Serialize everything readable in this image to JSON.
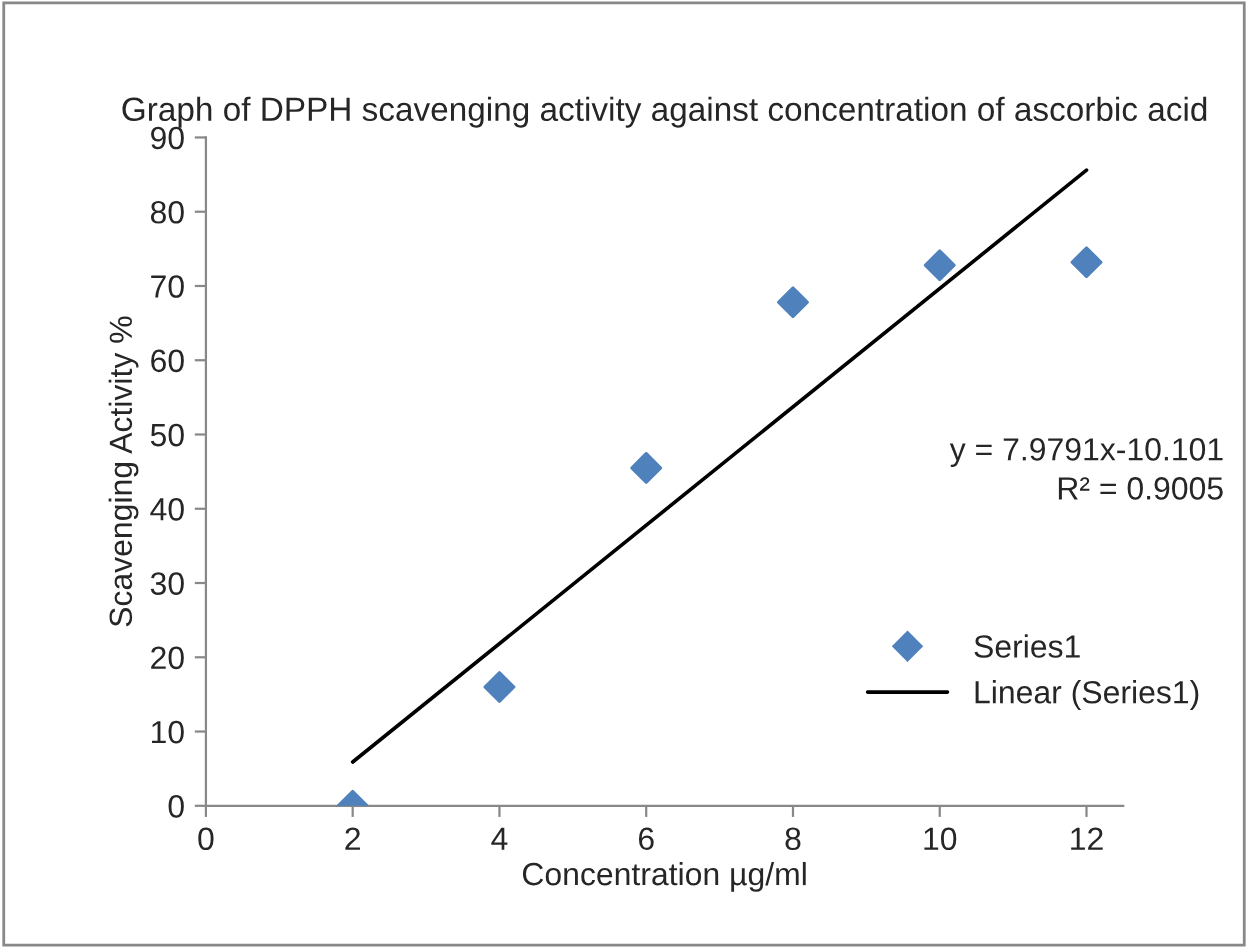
{
  "chart_data": {
    "type": "scatter",
    "title": "Graph of DPPH scavenging activity against concentration of ascorbic acid",
    "xlabel": "Concentration µg/ml",
    "ylabel": "Scavenging Activity %",
    "x": [
      2,
      4,
      6,
      8,
      10,
      12
    ],
    "series": [
      {
        "name": "Series1",
        "color": "#4f81bd",
        "values": [
          0,
          16,
          45.5,
          67.8,
          72.8,
          73.2
        ],
        "marker": "diamond"
      },
      {
        "name": "Linear (Series1)",
        "type": "line",
        "color": "#000000",
        "x": [
          2,
          12
        ],
        "values": [
          5.9,
          85.6
        ],
        "marker": "none",
        "line_style": "solid"
      }
    ],
    "annotations": [
      "y = 7.9791x-10.101",
      "R² = 0.9005"
    ],
    "xlim": [
      0,
      12.5
    ],
    "xticks": [
      0,
      2,
      4,
      6,
      8,
      10,
      12
    ],
    "ylim": [
      0,
      90
    ],
    "yticks": [
      0,
      10,
      20,
      30,
      40,
      50,
      60,
      70,
      80,
      90
    ],
    "grid": false,
    "legend": "right"
  }
}
